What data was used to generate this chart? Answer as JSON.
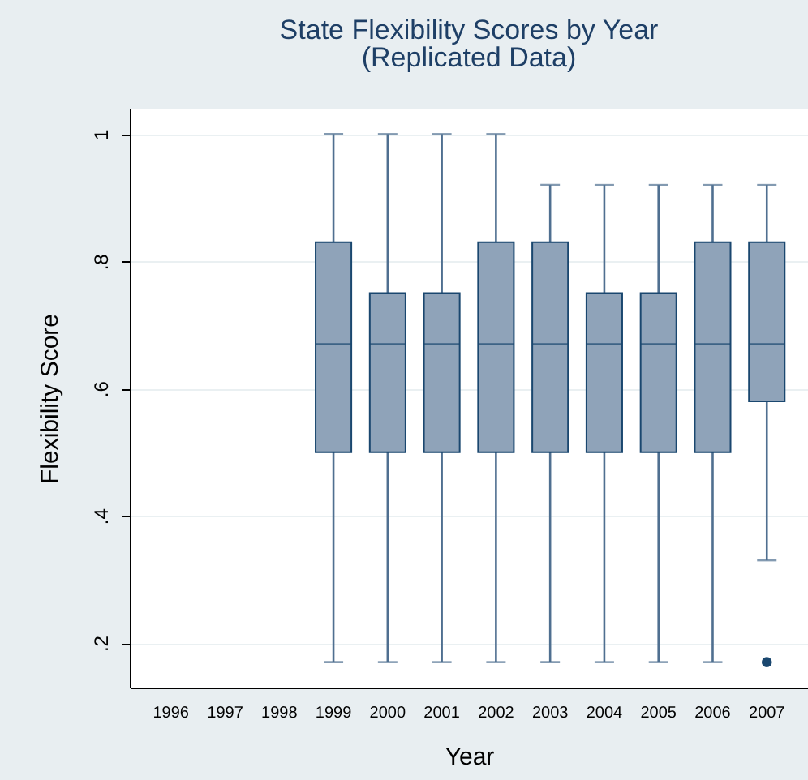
{
  "chart_data": {
    "type": "box",
    "title": "State Flexibility Scores by Year",
    "subtitle": "(Replicated Data)",
    "xlabel": "Year",
    "ylabel": "Flexibility Score",
    "categories": [
      "1996",
      "1997",
      "1998",
      "1999",
      "2000",
      "2001",
      "2002",
      "2003",
      "2004",
      "2005",
      "2006",
      "2007"
    ],
    "series": [
      {
        "color": "#8fa3b9",
        "boxes": [
          null,
          null,
          null,
          {
            "low": 0.17,
            "q1": 0.5,
            "median": 0.67,
            "q3": 0.83,
            "high": 1
          },
          {
            "low": 0.17,
            "q1": 0.5,
            "median": 0.67,
            "q3": 0.75,
            "high": 1
          },
          {
            "low": 0.17,
            "q1": 0.5,
            "median": 0.67,
            "q3": 0.75,
            "high": 1
          },
          {
            "low": 0.17,
            "q1": 0.5,
            "median": 0.67,
            "q3": 0.83,
            "high": 1
          },
          {
            "low": 0.17,
            "q1": 0.5,
            "median": 0.67,
            "q3": 0.83,
            "high": 0.92
          },
          {
            "low": 0.17,
            "q1": 0.5,
            "median": 0.67,
            "q3": 0.75,
            "high": 0.92
          },
          {
            "low": 0.17,
            "q1": 0.5,
            "median": 0.67,
            "q3": 0.75,
            "high": 0.92
          },
          {
            "low": 0.17,
            "q1": 0.5,
            "median": 0.67,
            "q3": 0.83,
            "high": 0.92
          },
          {
            "low": 0.33,
            "q1": 0.58,
            "median": 0.67,
            "q3": 0.83,
            "high": 0.92,
            "outliers": [
              0.17
            ]
          }
        ]
      }
    ],
    "ylim": [
      0.13,
      1.04
    ],
    "yticks": [
      {
        "value": 0.2,
        "label": ".2"
      },
      {
        "value": 0.4,
        "label": ".4"
      },
      {
        "value": 0.6,
        "label": ".6"
      },
      {
        "value": 0.8,
        "label": ".8"
      },
      1
    ],
    "grid": "y"
  }
}
